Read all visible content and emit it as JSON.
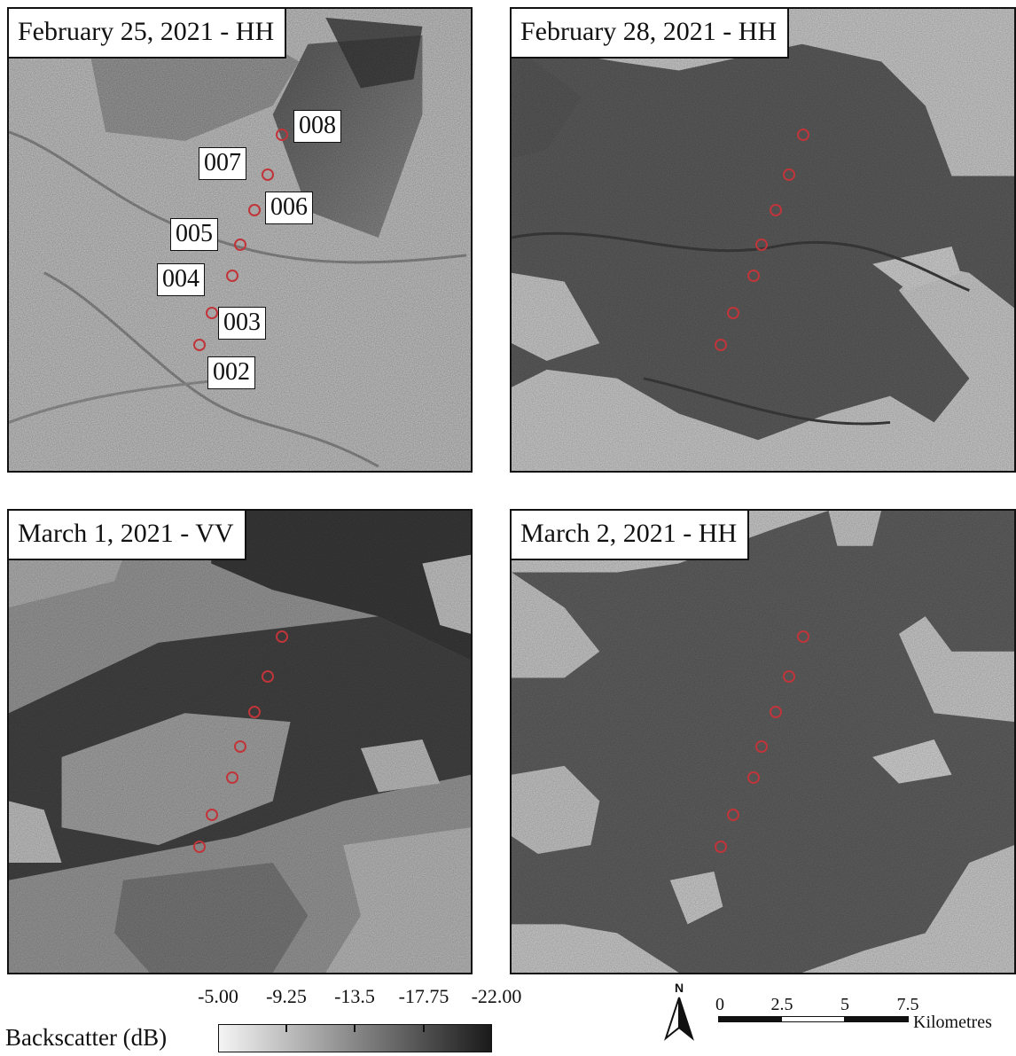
{
  "panels": [
    {
      "title": "February 25, 2021 - HH",
      "tone": "light"
    },
    {
      "title": "February 28, 2021 - HH",
      "tone": "dark"
    },
    {
      "title": "March 1, 2021 - VV",
      "tone": "mixed"
    },
    {
      "title": "March 2, 2021 - HH",
      "tone": "dark"
    }
  ],
  "site_labels": [
    "008",
    "007",
    "006",
    "005",
    "004",
    "003",
    "002"
  ],
  "legend": {
    "title": "Backscatter (dB)",
    "ticks": [
      "-5.00",
      "-9.25",
      "-13.5",
      "-17.75",
      "-22.00"
    ],
    "ramp_start_color": "#f4f4f4",
    "ramp_end_color": "#1a1a1a"
  },
  "scalebar": {
    "labels": [
      "0",
      "2.5",
      "5",
      "7.5"
    ],
    "units": "Kilometres",
    "north": "N"
  },
  "colors": {
    "site_marker": "#c0353a",
    "frame": "#111111"
  }
}
